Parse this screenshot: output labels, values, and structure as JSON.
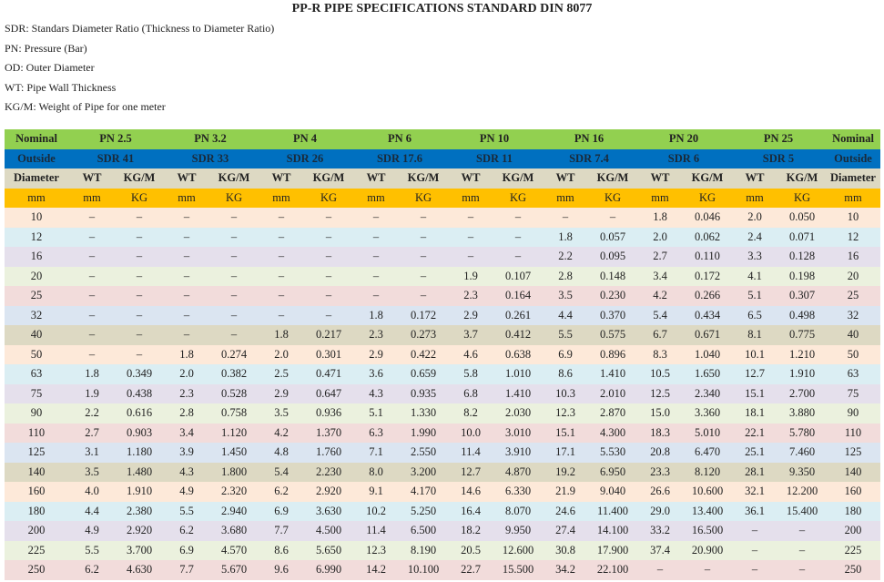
{
  "title": "PP-R PIPE SPECIFICATIONS STANDARD DIN 8077",
  "notes": [
    "SDR: Standars Diameter Ratio (Thickness to Diameter Ratio)",
    "PN: Pressure (Bar)",
    "OD: Outer Diameter",
    "WT: Pipe Wall Thickness",
    "KG/M: Weight of Pipe for one meter"
  ],
  "header": {
    "row1_edge": "Nominal",
    "row2_edge": "Outside",
    "row3_edge": "Diameter",
    "row4_edge": "mm",
    "pn": [
      "PN 2.5",
      "PN 3.2",
      "PN 4",
      "PN 6",
      "PN 10",
      "PN 16",
      "PN 20",
      "PN 25"
    ],
    "sdr": [
      "SDR 41",
      "SDR 33",
      "SDR 26",
      "SDR 17.6",
      "SDR 11",
      "SDR 7.4",
      "SDR 6",
      "SDR 5"
    ],
    "sub1": [
      "WT",
      "KG/M"
    ],
    "sub2": [
      "mm",
      "KG"
    ]
  },
  "row_colors": [
    "#fde9d9",
    "#dbeef3",
    "#e5e0ec",
    "#ebf1de",
    "#f2dcdb",
    "#dbe5f1",
    "#ddd9c3"
  ],
  "rows": [
    [
      "10",
      "–",
      "–",
      "–",
      "–",
      "–",
      "–",
      "–",
      "–",
      "–",
      "–",
      "–",
      "–",
      "1.8",
      "0.046",
      "2.0",
      "0.050"
    ],
    [
      "12",
      "–",
      "–",
      "–",
      "–",
      "–",
      "–",
      "–",
      "–",
      "–",
      "–",
      "1.8",
      "0.057",
      "2.0",
      "0.062",
      "2.4",
      "0.071"
    ],
    [
      "16",
      "–",
      "–",
      "–",
      "–",
      "–",
      "–",
      "–",
      "–",
      "–",
      "–",
      "2.2",
      "0.095",
      "2.7",
      "0.110",
      "3.3",
      "0.128"
    ],
    [
      "20",
      "–",
      "–",
      "–",
      "–",
      "–",
      "–",
      "–",
      "–",
      "1.9",
      "0.107",
      "2.8",
      "0.148",
      "3.4",
      "0.172",
      "4.1",
      "0.198"
    ],
    [
      "25",
      "–",
      "–",
      "–",
      "–",
      "–",
      "–",
      "–",
      "–",
      "2.3",
      "0.164",
      "3.5",
      "0.230",
      "4.2",
      "0.266",
      "5.1",
      "0.307"
    ],
    [
      "32",
      "–",
      "–",
      "–",
      "–",
      "–",
      "–",
      "1.8",
      "0.172",
      "2.9",
      "0.261",
      "4.4",
      "0.370",
      "5.4",
      "0.434",
      "6.5",
      "0.498"
    ],
    [
      "40",
      "–",
      "–",
      "–",
      "–",
      "1.8",
      "0.217",
      "2.3",
      "0.273",
      "3.7",
      "0.412",
      "5.5",
      "0.575",
      "6.7",
      "0.671",
      "8.1",
      "0.775"
    ],
    [
      "50",
      "–",
      "–",
      "1.8",
      "0.274",
      "2.0",
      "0.301",
      "2.9",
      "0.422",
      "4.6",
      "0.638",
      "6.9",
      "0.896",
      "8.3",
      "1.040",
      "10.1",
      "1.210"
    ],
    [
      "63",
      "1.8",
      "0.349",
      "2.0",
      "0.382",
      "2.5",
      "0.471",
      "3.6",
      "0.659",
      "5.8",
      "1.010",
      "8.6",
      "1.410",
      "10.5",
      "1.650",
      "12.7",
      "1.910"
    ],
    [
      "75",
      "1.9",
      "0.438",
      "2.3",
      "0.528",
      "2.9",
      "0.647",
      "4.3",
      "0.935",
      "6.8",
      "1.410",
      "10.3",
      "2.010",
      "12.5",
      "2.340",
      "15.1",
      "2.700"
    ],
    [
      "90",
      "2.2",
      "0.616",
      "2.8",
      "0.758",
      "3.5",
      "0.936",
      "5.1",
      "1.330",
      "8.2",
      "2.030",
      "12.3",
      "2.870",
      "15.0",
      "3.360",
      "18.1",
      "3.880"
    ],
    [
      "110",
      "2.7",
      "0.903",
      "3.4",
      "1.120",
      "4.2",
      "1.370",
      "6.3",
      "1.990",
      "10.0",
      "3.010",
      "15.1",
      "4.300",
      "18.3",
      "5.010",
      "22.1",
      "5.780"
    ],
    [
      "125",
      "3.1",
      "1.180",
      "3.9",
      "1.450",
      "4.8",
      "1.760",
      "7.1",
      "2.550",
      "11.4",
      "3.910",
      "17.1",
      "5.530",
      "20.8",
      "6.470",
      "25.1",
      "7.460"
    ],
    [
      "140",
      "3.5",
      "1.480",
      "4.3",
      "1.800",
      "5.4",
      "2.230",
      "8.0",
      "3.200",
      "12.7",
      "4.870",
      "19.2",
      "6.950",
      "23.3",
      "8.120",
      "28.1",
      "9.350"
    ],
    [
      "160",
      "4.0",
      "1.910",
      "4.9",
      "2.320",
      "6.2",
      "2.920",
      "9.1",
      "4.170",
      "14.6",
      "6.330",
      "21.9",
      "9.040",
      "26.6",
      "10.600",
      "32.1",
      "12.200"
    ],
    [
      "180",
      "4.4",
      "2.380",
      "5.5",
      "2.940",
      "6.9",
      "3.630",
      "10.2",
      "5.250",
      "16.4",
      "8.070",
      "24.6",
      "11.400",
      "29.0",
      "13.400",
      "36.1",
      "15.400"
    ],
    [
      "200",
      "4.9",
      "2.920",
      "6.2",
      "3.680",
      "7.7",
      "4.500",
      "11.4",
      "6.500",
      "18.2",
      "9.950",
      "27.4",
      "14.100",
      "33.2",
      "16.500",
      "–",
      "–"
    ],
    [
      "225",
      "5.5",
      "3.700",
      "6.9",
      "4.570",
      "8.6",
      "5.650",
      "12.3",
      "8.190",
      "20.5",
      "12.600",
      "30.8",
      "17.900",
      "37.4",
      "20.900",
      "–",
      "–"
    ],
    [
      "250",
      "6.2",
      "4.630",
      "7.7",
      "5.670",
      "9.6",
      "6.990",
      "14.2",
      "10.100",
      "22.7",
      "15.500",
      "34.2",
      "22.100",
      "–",
      "–",
      "–",
      "–"
    ]
  ]
}
